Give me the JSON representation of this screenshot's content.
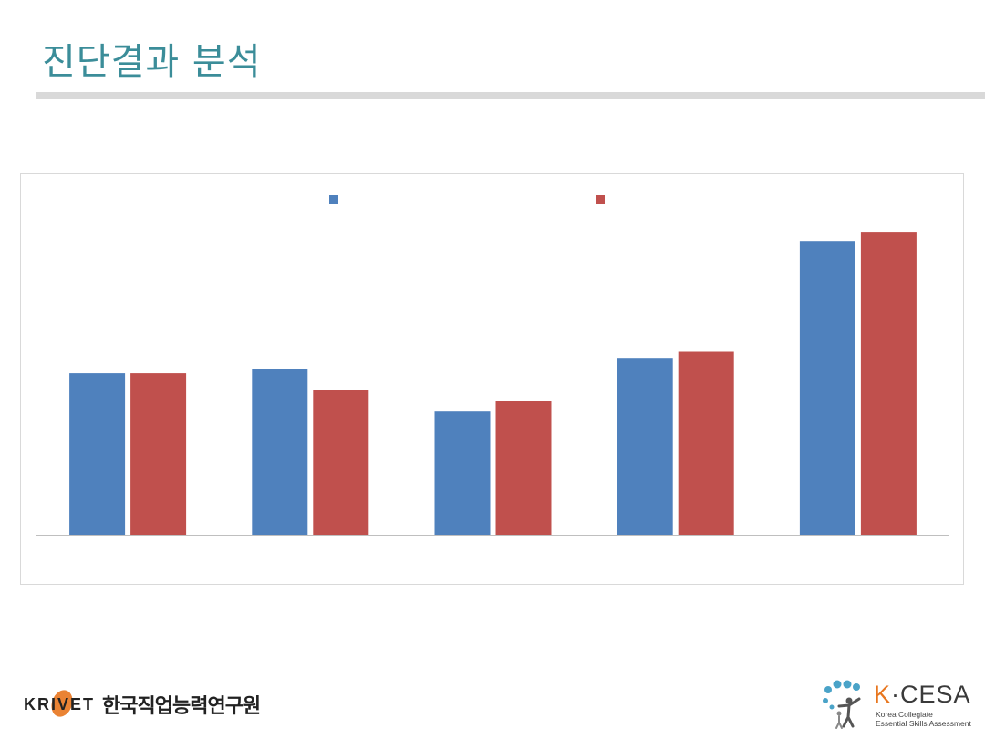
{
  "slide": {
    "title": "진단결과 분석"
  },
  "colors": {
    "title": "#3b8d99",
    "series1": "#4f81bd",
    "series2": "#c0504d",
    "rule": "#d9d9d9"
  },
  "chart_data": {
    "type": "bar",
    "categories": [
      "",
      "",
      "",
      "",
      ""
    ],
    "series": [
      {
        "color": "#4f81bd",
        "values": [
          52.5,
          54,
          40,
          57.5,
          95.5
        ]
      },
      {
        "color": "#c0504d",
        "values": [
          52.5,
          47,
          43.5,
          59.5,
          98.5
        ]
      }
    ],
    "ylim": [
      0,
      100
    ],
    "grid": false,
    "legend": "top-center"
  },
  "footer": {
    "krivet_logo": "KRIVET",
    "krivet_name": "한국직업능력연구원",
    "kcesa_logo_k": "K",
    "kcesa_logo_rest": "·CESA",
    "kcesa_line1": "Korea Collegiate",
    "kcesa_line2": "Essential Skills Assessment"
  }
}
